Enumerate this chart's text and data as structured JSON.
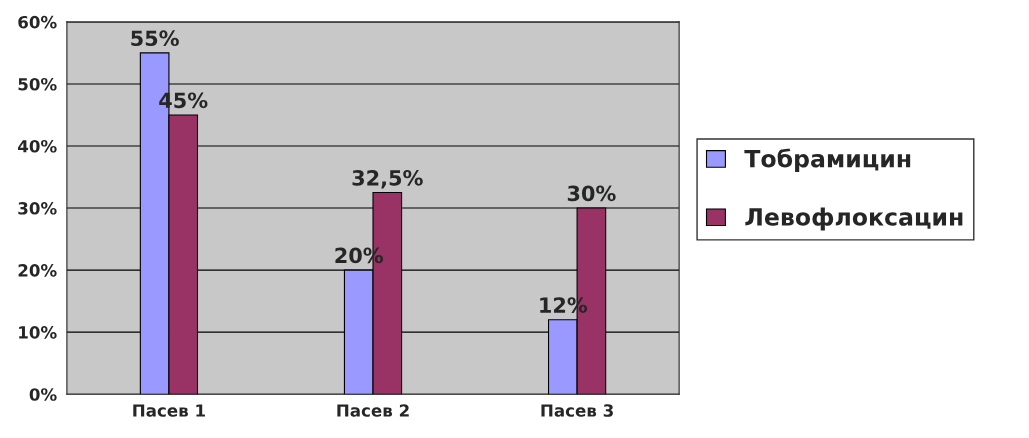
{
  "chart_data": {
    "type": "bar",
    "categories": [
      "Пасев 1",
      "Пасев 2",
      "Пасев 3"
    ],
    "series": [
      {
        "name": "Тобрамицин",
        "color": "#9999ff",
        "values": [
          55,
          20,
          12
        ],
        "value_labels": [
          "55%",
          "20%",
          "12%"
        ]
      },
      {
        "name": "Левофлоксацин",
        "color": "#993366",
        "values": [
          45,
          32.5,
          30
        ],
        "value_labels": [
          "45%",
          "32,5%",
          "30%"
        ]
      }
    ],
    "ylim": [
      0,
      60
    ],
    "yticks": [
      {
        "value": 0,
        "label": "0%"
      },
      {
        "value": 10,
        "label": "10%"
      },
      {
        "value": 20,
        "label": "20%"
      },
      {
        "value": 30,
        "label": "30%"
      },
      {
        "value": 40,
        "label": "40%"
      },
      {
        "value": 50,
        "label": "50%"
      },
      {
        "value": 60,
        "label": "60%"
      }
    ],
    "grid": "y",
    "legend": "right"
  }
}
